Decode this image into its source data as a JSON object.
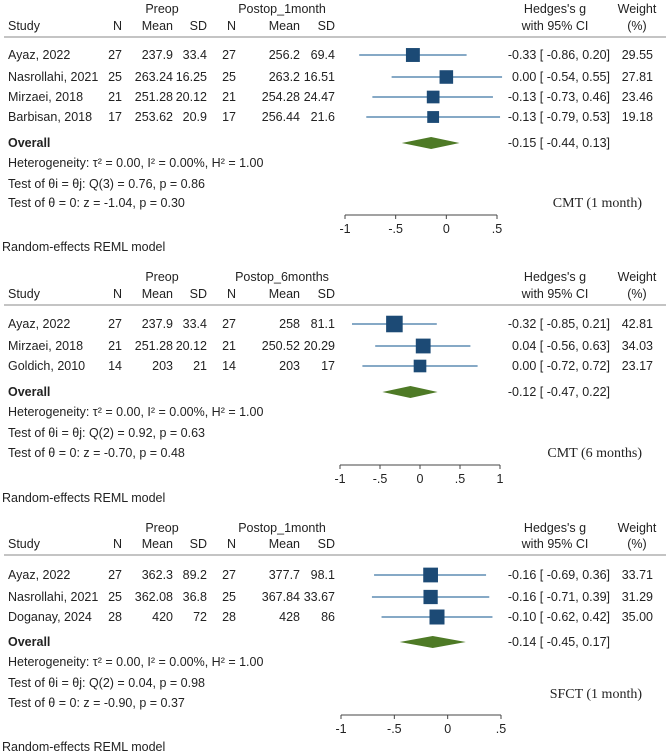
{
  "colors": {
    "square": "#1c4a75",
    "ci_line": "#3f76a3",
    "diamond": "#4e7a26",
    "rule": "#888888",
    "text": "#222222"
  },
  "chart_data": [
    {
      "type": "forest",
      "title": "CMT (1 month)",
      "group1": "Preop",
      "group2": "Postop_1month",
      "col_headers": {
        "study": "Study",
        "n": "N",
        "mean": "Mean",
        "sd": "SD",
        "effect1": "Hedges's g",
        "effect2": "with 95% CI",
        "weight1": "Weight",
        "weight2": "(%)"
      },
      "studies": [
        {
          "study": "Ayaz, 2022",
          "n1": "27",
          "mean1": "237.9",
          "sd1": "33.4",
          "n2": "27",
          "mean2": "256.2",
          "sd2": "69.4",
          "g": -0.33,
          "lo": -0.86,
          "hi": 0.2,
          "ci_text": "-0.33 [ -0.86,  0.20]",
          "weight": "29.55"
        },
        {
          "study": "Nasrollahi, 2021",
          "n1": "25",
          "mean1": "263.24",
          "sd1": "16.25",
          "n2": "25",
          "mean2": "263.2",
          "sd2": "16.51",
          "g": 0.0,
          "lo": -0.54,
          "hi": 0.55,
          "ci_text": "0.00 [ -0.54,  0.55]",
          "weight": "27.81"
        },
        {
          "study": "Mirzaei, 2018",
          "n1": "21",
          "mean1": "251.28",
          "sd1": "20.12",
          "n2": "21",
          "mean2": "254.28",
          "sd2": "24.47",
          "g": -0.13,
          "lo": -0.73,
          "hi": 0.46,
          "ci_text": "-0.13 [ -0.73,  0.46]",
          "weight": "23.46"
        },
        {
          "study": "Barbisan, 2018",
          "n1": "17",
          "mean1": "253.62",
          "sd1": "20.9",
          "n2": "17",
          "mean2": "256.44",
          "sd2": "21.6",
          "g": -0.13,
          "lo": -0.79,
          "hi": 0.53,
          "ci_text": "-0.13 [ -0.79,  0.53]",
          "weight": "19.18"
        }
      ],
      "overall": {
        "label": "Overall",
        "g": -0.15,
        "lo": -0.44,
        "hi": 0.13,
        "ci_text": "-0.15 [ -0.44,  0.13]"
      },
      "stats": [
        "Heterogeneity: τ² = 0.00, I² = 0.00%, H² = 1.00",
        "Test of θi = θj: Q(3) = 0.76, p = 0.86",
        "Test of θ = 0: z = -1.04, p = 0.30"
      ],
      "xlim": [
        -1,
        0.5
      ],
      "ticks": [
        -1,
        -0.5,
        0,
        0.5
      ],
      "tick_labels": [
        "-1",
        "-.5",
        "0",
        ".5"
      ],
      "footnote": "Random-effects REML model"
    },
    {
      "type": "forest",
      "title": "CMT (6 months)",
      "group1": "Preop",
      "group2": "Postop_6months",
      "col_headers": {
        "study": "Study",
        "n": "N",
        "mean": "Mean",
        "sd": "SD",
        "effect1": "Hedges's g",
        "effect2": "with 95% CI",
        "weight1": "Weight",
        "weight2": "(%)"
      },
      "studies": [
        {
          "study": "Ayaz, 2022",
          "n1": "27",
          "mean1": "237.9",
          "sd1": "33.4",
          "n2": "27",
          "mean2": "258",
          "sd2": "81.1",
          "g": -0.32,
          "lo": -0.85,
          "hi": 0.21,
          "ci_text": "-0.32 [ -0.85,  0.21]",
          "weight": "42.81"
        },
        {
          "study": "Mirzaei, 2018",
          "n1": "21",
          "mean1": "251.28",
          "sd1": "20.12",
          "n2": "21",
          "mean2": "250.52",
          "sd2": "20.29",
          "g": 0.04,
          "lo": -0.56,
          "hi": 0.63,
          "ci_text": "0.04 [ -0.56,  0.63]",
          "weight": "34.03"
        },
        {
          "study": "Goldich, 2010",
          "n1": "14",
          "mean1": "203",
          "sd1": "21",
          "n2": "14",
          "mean2": "203",
          "sd2": "17",
          "g": 0.0,
          "lo": -0.72,
          "hi": 0.72,
          "ci_text": "0.00 [ -0.72,  0.72]",
          "weight": "23.17"
        }
      ],
      "overall": {
        "label": "Overall",
        "g": -0.12,
        "lo": -0.47,
        "hi": 0.22,
        "ci_text": "-0.12 [ -0.47,  0.22]"
      },
      "stats": [
        "Heterogeneity: τ² = 0.00, I² = 0.00%, H² = 1.00",
        "Test of θi = θj: Q(2) = 0.92, p = 0.63",
        "Test of θ = 0: z = -0.70, p = 0.48"
      ],
      "xlim": [
        -1,
        1
      ],
      "ticks": [
        -1,
        -0.5,
        0,
        0.5,
        1
      ],
      "tick_labels": [
        "-1",
        "-.5",
        "0",
        ".5",
        "1"
      ],
      "footnote": "Random-effects REML model"
    },
    {
      "type": "forest",
      "title": "SFCT (1 month)",
      "group1": "Preop",
      "group2": "Postop_1month",
      "col_headers": {
        "study": "Study",
        "n": "N",
        "mean": "Mean",
        "sd": "SD",
        "effect1": "Hedges's g",
        "effect2": "with 95% CI",
        "weight1": "Weight",
        "weight2": "(%)"
      },
      "studies": [
        {
          "study": "Ayaz, 2022",
          "n1": "27",
          "mean1": "362.3",
          "sd1": "89.2",
          "n2": "27",
          "mean2": "377.7",
          "sd2": "98.1",
          "g": -0.16,
          "lo": -0.69,
          "hi": 0.36,
          "ci_text": "-0.16 [ -0.69,  0.36]",
          "weight": "33.71"
        },
        {
          "study": "Nasrollahi, 2021",
          "n1": "25",
          "mean1": "362.08",
          "sd1": "36.8",
          "n2": "25",
          "mean2": "367.84",
          "sd2": "33.67",
          "g": -0.16,
          "lo": -0.71,
          "hi": 0.39,
          "ci_text": "-0.16 [ -0.71,  0.39]",
          "weight": "31.29"
        },
        {
          "study": "Doganay, 2024",
          "n1": "28",
          "mean1": "420",
          "sd1": "72",
          "n2": "28",
          "mean2": "428",
          "sd2": "86",
          "g": -0.1,
          "lo": -0.62,
          "hi": 0.42,
          "ci_text": "-0.10 [ -0.62,  0.42]",
          "weight": "35.00"
        }
      ],
      "overall": {
        "label": "Overall",
        "g": -0.14,
        "lo": -0.45,
        "hi": 0.17,
        "ci_text": "-0.14 [ -0.45,  0.17]"
      },
      "stats": [
        "Heterogeneity: τ² = 0.00, I² = 0.00%, H² = 1.00",
        "Test of θi = θj: Q(2) = 0.04, p = 0.98",
        "Test of θ = 0: z = -0.90, p = 0.37"
      ],
      "xlim": [
        -1,
        0.5
      ],
      "ticks": [
        -1,
        -0.5,
        0,
        0.5
      ],
      "tick_labels": [
        "-1",
        "-.5",
        "0",
        ".5"
      ],
      "footnote": "Random-effects REML model"
    }
  ]
}
